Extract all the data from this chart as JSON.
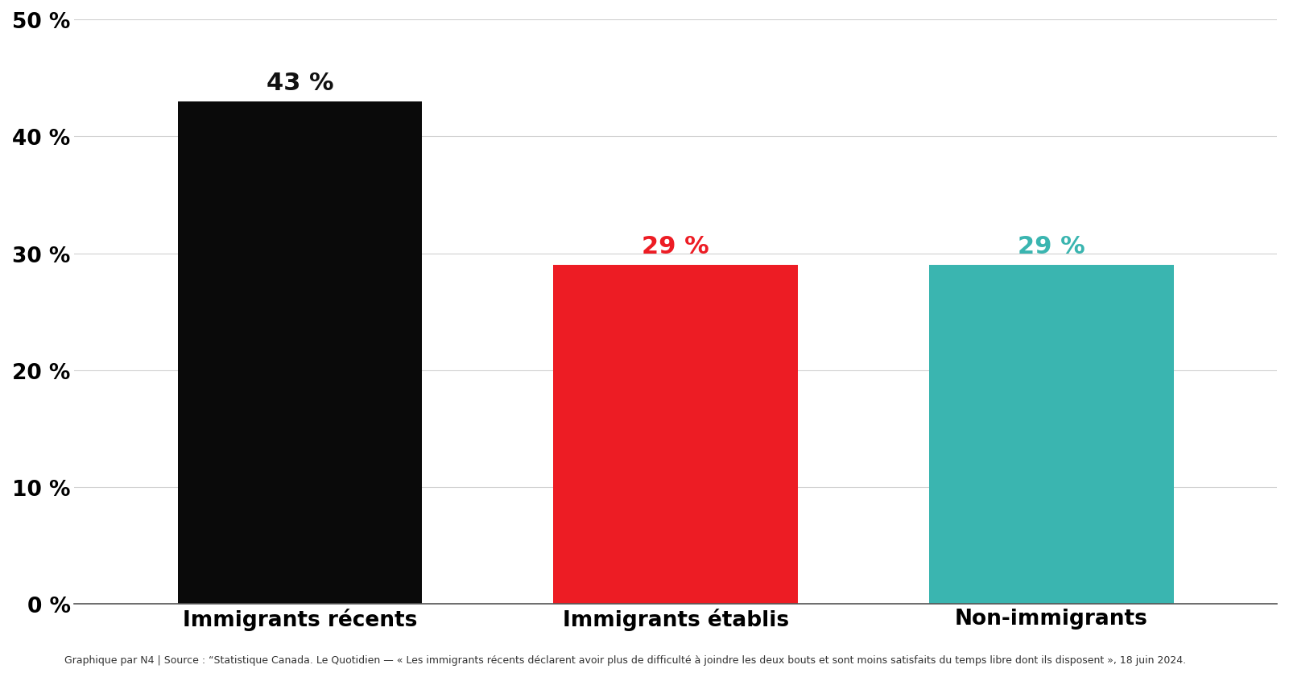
{
  "categories": [
    "Immigrants récents",
    "Immigrants établis",
    "Non-immigrants"
  ],
  "values": [
    43,
    29,
    29
  ],
  "bar_colors": [
    "#0a0a0a",
    "#ed1c24",
    "#3ab5b0"
  ],
  "label_colors": [
    "#111111",
    "#ed1c24",
    "#3ab5b0"
  ],
  "labels": [
    "43 %",
    "29 %",
    "29 %"
  ],
  "ylim": [
    0,
    50
  ],
  "yticks": [
    0,
    10,
    20,
    30,
    40,
    50
  ],
  "ytick_labels": [
    "0 %",
    "10 %",
    "20 %",
    "30 %",
    "40 %",
    "50 %"
  ],
  "background_color": "#ffffff",
  "grid_color": "#d0d0d0",
  "footnote": "Graphique par N4 | Source : “Statistique Canada. Le Quotidien — « Les immigrants récents déclarent avoir plus de difficulté à joindre les deux bouts et sont moins satisfaits du temps libre dont ils disposent », 18 juin 2024.",
  "bar_label_fontsize": 22,
  "tick_label_fontsize": 19,
  "category_fontsize": 19,
  "footnote_fontsize": 9,
  "bar_width": 0.65,
  "x_positions": [
    0,
    1,
    2
  ]
}
